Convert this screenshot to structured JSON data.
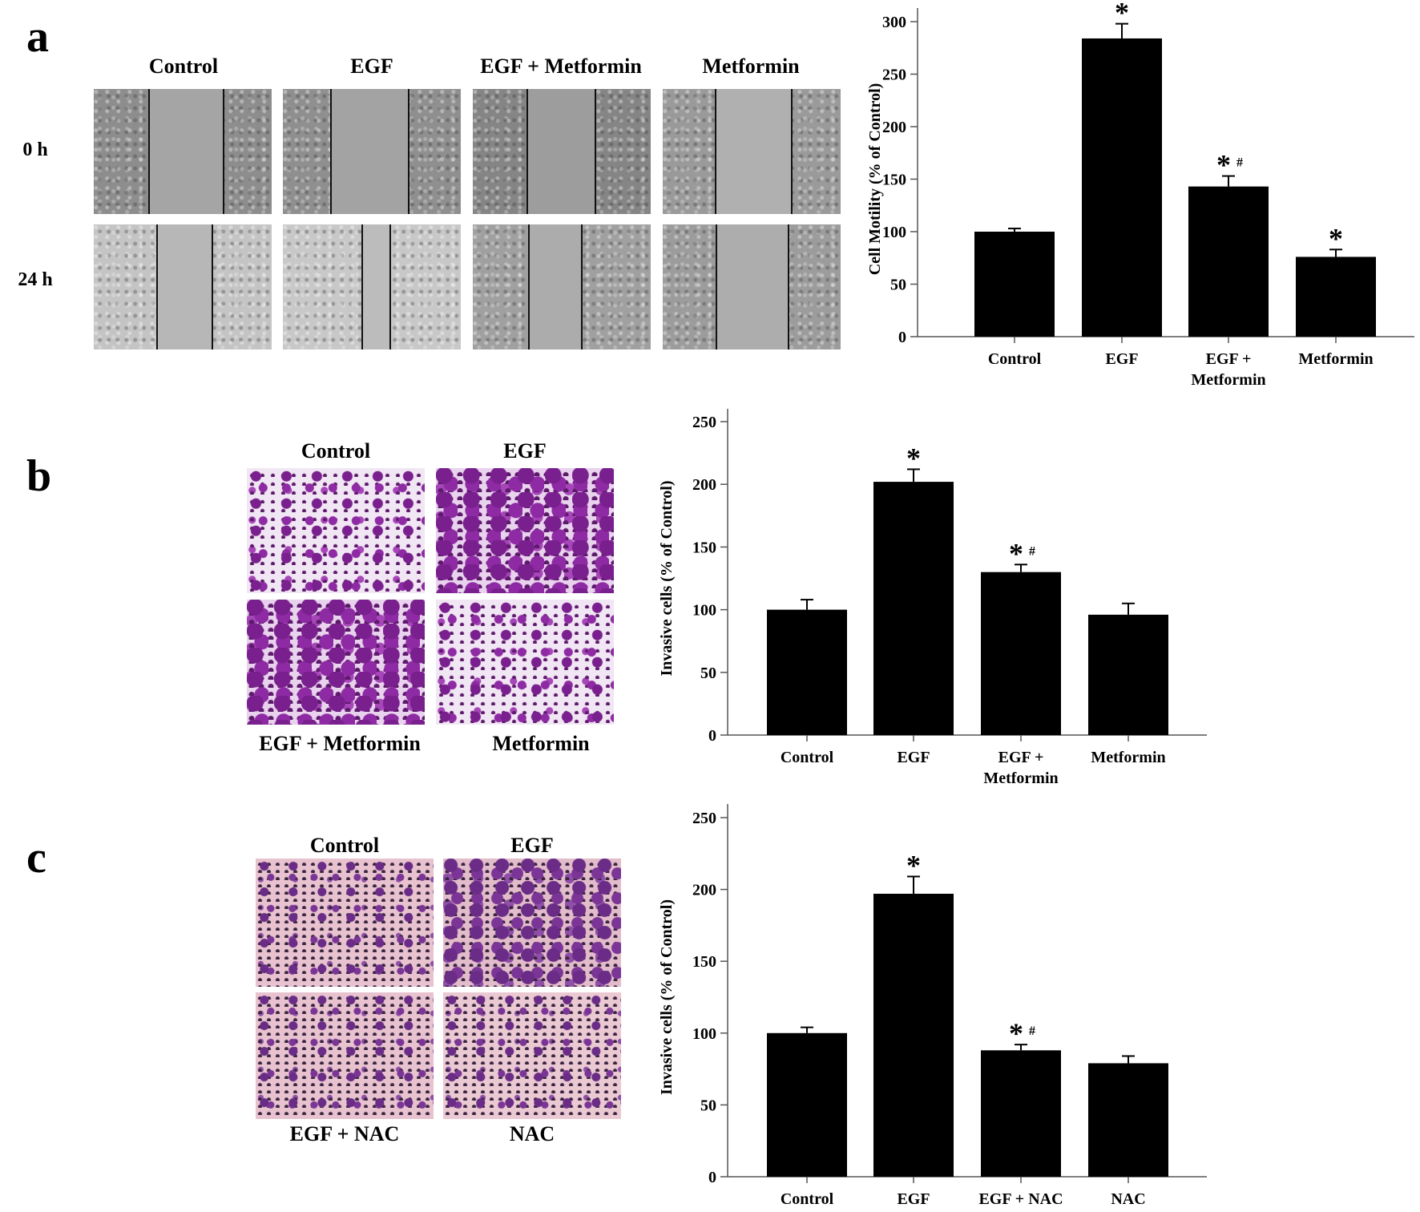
{
  "panels": {
    "a": {
      "letter": "a",
      "column_labels": [
        "Control",
        "EGF",
        "EGF + Metformin",
        "Metformin"
      ],
      "row_labels": [
        "0 h",
        "24 h"
      ]
    },
    "b": {
      "letter": "b",
      "top_labels": [
        "Control",
        "EGF"
      ],
      "bottom_labels": [
        "EGF + Metformin",
        "Metformin"
      ]
    },
    "c": {
      "letter": "c",
      "top_labels": [
        "Control",
        "EGF"
      ],
      "bottom_labels": [
        "EGF + NAC",
        "NAC"
      ]
    }
  },
  "chart_data": [
    {
      "type": "bar",
      "panel": "a",
      "ylabel": "Cell Motility (% of Control)",
      "categories": [
        "Control",
        "EGF",
        "EGF + Metformin",
        "Metformin"
      ],
      "category_lines": [
        [
          "Control"
        ],
        [
          "EGF"
        ],
        [
          "EGF +",
          "Metformin"
        ],
        [
          "Metformin"
        ]
      ],
      "values": [
        100,
        284,
        143,
        76
      ],
      "errors": [
        3,
        14,
        10,
        7
      ],
      "annotations": [
        "",
        "*",
        "*#",
        "*"
      ],
      "ylim": [
        0,
        300
      ],
      "yticks": [
        0,
        50,
        100,
        150,
        200,
        250,
        300
      ],
      "bar_color": "#000000"
    },
    {
      "type": "bar",
      "panel": "b",
      "ylabel": "Invasive cells (% of Control)",
      "categories": [
        "Control",
        "EGF",
        "EGF + Metformin",
        "Metformin"
      ],
      "category_lines": [
        [
          "Control"
        ],
        [
          "EGF"
        ],
        [
          "EGF +",
          "Metformin"
        ],
        [
          "Metformin"
        ]
      ],
      "values": [
        100,
        202,
        130,
        96
      ],
      "errors": [
        8,
        10,
        6,
        9
      ],
      "annotations": [
        "",
        "*",
        "*#",
        ""
      ],
      "ylim": [
        0,
        250
      ],
      "yticks": [
        0,
        50,
        100,
        150,
        200,
        250
      ],
      "bar_color": "#000000"
    },
    {
      "type": "bar",
      "panel": "c",
      "ylabel": "Invasive cells (% of Control)",
      "categories": [
        "Control",
        "EGF",
        "EGF + NAC",
        "NAC"
      ],
      "category_lines": [
        [
          "Control"
        ],
        [
          "EGF"
        ],
        [
          "EGF + NAC"
        ],
        [
          "NAC"
        ]
      ],
      "values": [
        100,
        197,
        88,
        79
      ],
      "errors": [
        4,
        12,
        4,
        5
      ],
      "annotations": [
        "",
        "*",
        "*#",
        ""
      ],
      "ylim": [
        0,
        250
      ],
      "yticks": [
        0,
        50,
        100,
        150,
        200,
        250
      ],
      "bar_color": "#000000"
    }
  ]
}
